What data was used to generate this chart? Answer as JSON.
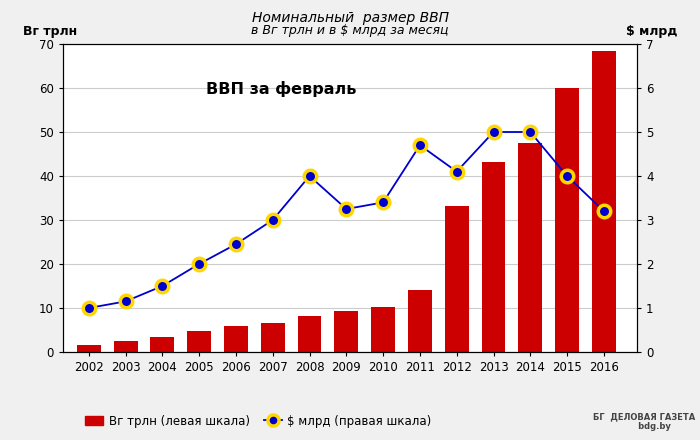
{
  "years": [
    2002,
    2003,
    2004,
    2005,
    2006,
    2007,
    2008,
    2009,
    2010,
    2011,
    2012,
    2013,
    2014,
    2015,
    2016
  ],
  "byr_trln": [
    1.7,
    2.5,
    3.5,
    4.7,
    6.0,
    6.7,
    8.2,
    9.3,
    10.2,
    14.2,
    33.2,
    43.2,
    47.5,
    60.0,
    68.5
  ],
  "usd_bln": [
    1.0,
    1.15,
    1.5,
    2.0,
    2.45,
    3.0,
    4.0,
    3.25,
    3.4,
    4.7,
    4.1,
    5.0,
    5.0,
    4.0,
    3.2
  ],
  "bar_color": "#cc0000",
  "line_color": "#0000cc",
  "marker_face": "#0000cc",
  "marker_edge": "#ffd700",
  "title_main": "Номинальный  размер ВВП",
  "title_sub": "в Вг трлн и в $ млрд за месяц",
  "inner_title": "ВВП за февраль",
  "ylabel_left": "Вг трлн",
  "ylabel_right": "$ млрд",
  "legend_bar": "Вг трлн (левая шкала)",
  "legend_line": "$ млрд (правая шкала)",
  "ylim_left": [
    0,
    70
  ],
  "ylim_right": [
    0,
    7
  ],
  "yticks_left": [
    0,
    10,
    20,
    30,
    40,
    50,
    60,
    70
  ],
  "yticks_right": [
    0,
    1,
    2,
    3,
    4,
    5,
    6,
    7
  ],
  "plot_bg_color": "#ffffff",
  "fig_bg_color": "#f0f0f0",
  "grid_color": "#cccccc"
}
